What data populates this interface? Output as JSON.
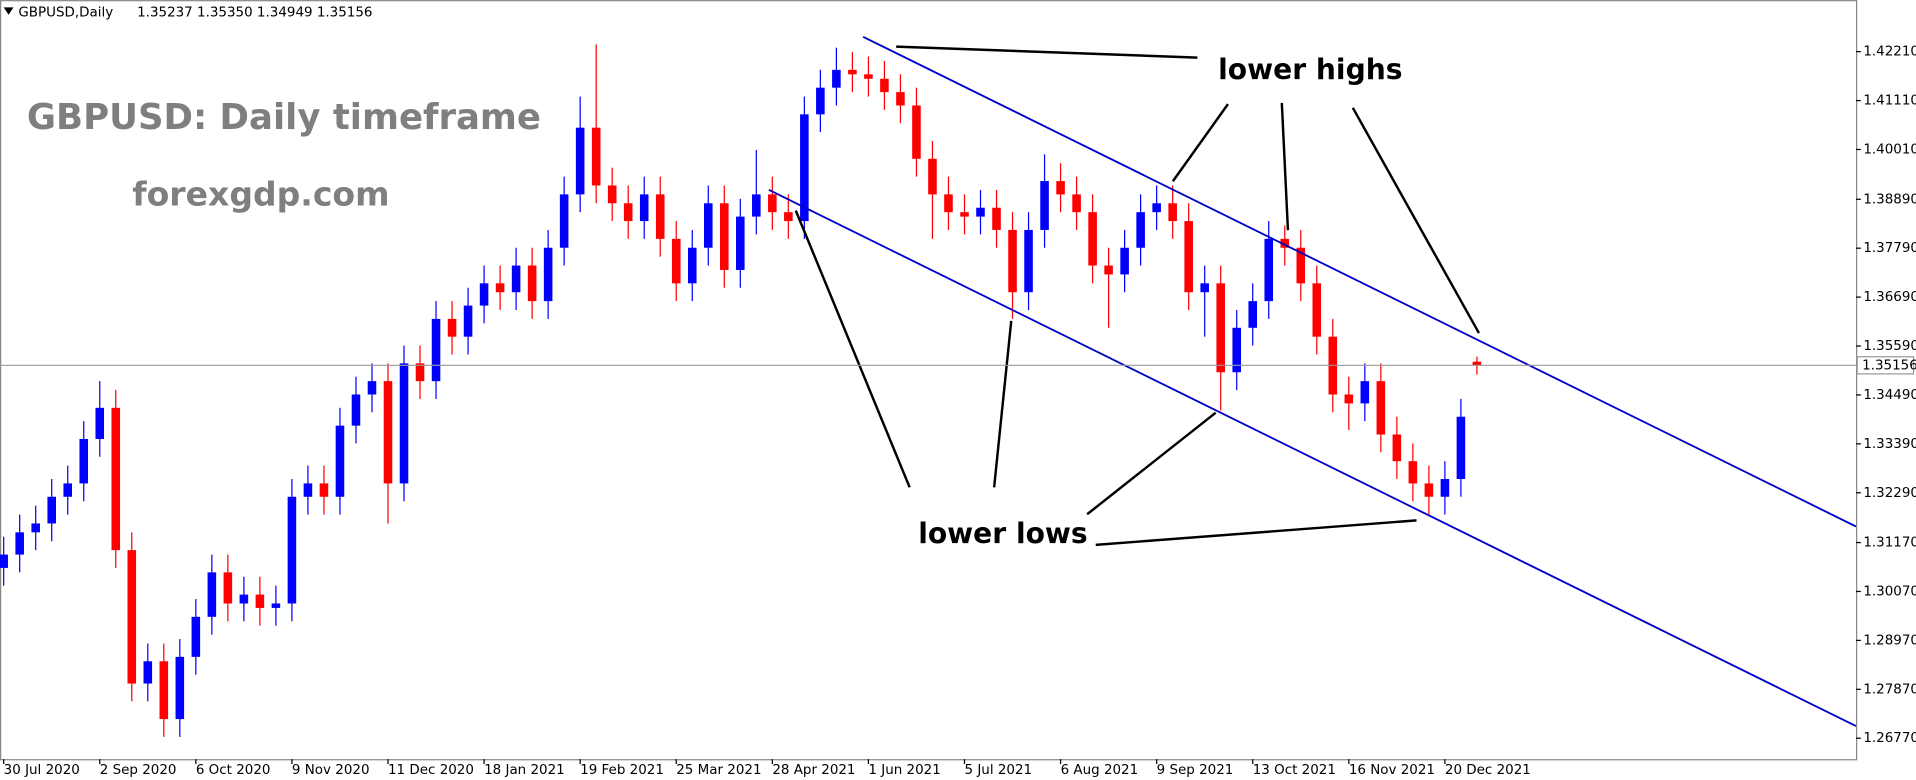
{
  "header": {
    "symbol": "GBPUSD,Daily",
    "quote": "1.35237 1.35350 1.34949 1.35156"
  },
  "chart_data": {
    "type": "candlestick",
    "title": "GBPUSD: Daily timeframe",
    "subtitle": "forexgdp.com",
    "annotations": [
      "lower highs",
      "lower lows"
    ],
    "categories": [
      "30 Jul 2020",
      null,
      null,
      null,
      null,
      null,
      "2 Sep 2020",
      null,
      null,
      null,
      null,
      null,
      "6 Oct 2020",
      null,
      null,
      null,
      null,
      null,
      "9 Nov 2020",
      null,
      null,
      null,
      null,
      null,
      "11 Dec 2020",
      null,
      null,
      null,
      null,
      null,
      "18 Jan 2021",
      null,
      null,
      null,
      null,
      null,
      "19 Feb 2021",
      null,
      null,
      null,
      null,
      null,
      "25 Mar 2021",
      null,
      null,
      null,
      null,
      null,
      "28 Apr 2021",
      null,
      null,
      null,
      null,
      null,
      "1 Jun 2021",
      null,
      null,
      null,
      null,
      null,
      "5 Jul 2021",
      null,
      null,
      null,
      null,
      null,
      "6 Aug 2021",
      null,
      null,
      null,
      null,
      null,
      "9 Sep 2021",
      null,
      null,
      null,
      null,
      null,
      "13 Oct 2021",
      null,
      null,
      null,
      null,
      null,
      "16 Nov 2021",
      null,
      null,
      null,
      null,
      null,
      "20 Dec 2021",
      null,
      null
    ],
    "open": [
      1.306,
      1.309,
      1.314,
      1.316,
      1.322,
      1.325,
      1.335,
      1.342,
      1.31,
      1.28,
      1.285,
      1.272,
      1.286,
      1.295,
      1.305,
      1.298,
      1.3,
      1.297,
      1.298,
      1.322,
      1.325,
      1.322,
      1.338,
      1.345,
      1.348,
      1.325,
      1.352,
      1.348,
      1.362,
      1.358,
      1.365,
      1.37,
      1.368,
      1.374,
      1.366,
      1.378,
      1.39,
      1.405,
      1.392,
      1.388,
      1.384,
      1.39,
      1.38,
      1.37,
      1.378,
      1.388,
      1.373,
      1.385,
      1.39,
      1.386,
      1.384,
      1.408,
      1.414,
      1.418,
      1.417,
      1.416,
      1.413,
      1.41,
      1.398,
      1.39,
      1.386,
      1.385,
      1.387,
      1.382,
      1.368,
      1.382,
      1.393,
      1.39,
      1.386,
      1.374,
      1.372,
      1.378,
      1.386,
      1.388,
      1.384,
      1.368,
      1.37,
      1.35,
      1.36,
      1.366,
      1.38,
      1.378,
      1.37,
      1.358,
      1.345,
      1.343,
      1.348,
      1.336,
      1.33,
      1.325,
      1.322,
      1.326,
      1.35237
    ],
    "high": [
      1.313,
      1.318,
      1.32,
      1.326,
      1.329,
      1.339,
      1.348,
      1.346,
      1.314,
      1.289,
      1.289,
      1.29,
      1.299,
      1.309,
      1.309,
      1.304,
      1.304,
      1.302,
      1.326,
      1.329,
      1.329,
      1.342,
      1.349,
      1.352,
      1.352,
      1.356,
      1.356,
      1.366,
      1.366,
      1.369,
      1.374,
      1.374,
      1.378,
      1.378,
      1.382,
      1.394,
      1.412,
      1.4237,
      1.396,
      1.392,
      1.394,
      1.394,
      1.384,
      1.382,
      1.392,
      1.392,
      1.389,
      1.4,
      1.394,
      1.39,
      1.412,
      1.418,
      1.423,
      1.422,
      1.421,
      1.42,
      1.417,
      1.414,
      1.402,
      1.394,
      1.39,
      1.391,
      1.391,
      1.386,
      1.386,
      1.399,
      1.397,
      1.394,
      1.39,
      1.378,
      1.382,
      1.39,
      1.392,
      1.392,
      1.388,
      1.374,
      1.374,
      1.364,
      1.37,
      1.384,
      1.383,
      1.382,
      1.374,
      1.362,
      1.349,
      1.352,
      1.352,
      1.34,
      1.334,
      1.329,
      1.33,
      1.344,
      1.3535
    ],
    "low": [
      1.302,
      1.305,
      1.31,
      1.312,
      1.318,
      1.321,
      1.331,
      1.306,
      1.276,
      1.276,
      1.268,
      1.268,
      1.282,
      1.291,
      1.294,
      1.294,
      1.293,
      1.293,
      1.294,
      1.318,
      1.318,
      1.318,
      1.334,
      1.341,
      1.316,
      1.321,
      1.344,
      1.344,
      1.354,
      1.354,
      1.361,
      1.364,
      1.364,
      1.362,
      1.362,
      1.374,
      1.386,
      1.388,
      1.384,
      1.38,
      1.38,
      1.376,
      1.366,
      1.366,
      1.374,
      1.369,
      1.369,
      1.381,
      1.382,
      1.38,
      1.38,
      1.404,
      1.41,
      1.413,
      1.412,
      1.409,
      1.406,
      1.394,
      1.38,
      1.382,
      1.381,
      1.381,
      1.378,
      1.362,
      1.364,
      1.378,
      1.386,
      1.382,
      1.37,
      1.36,
      1.368,
      1.374,
      1.382,
      1.38,
      1.364,
      1.358,
      1.3414,
      1.346,
      1.356,
      1.362,
      1.374,
      1.366,
      1.354,
      1.341,
      1.337,
      1.339,
      1.332,
      1.326,
      1.321,
      1.318,
      1.318,
      1.322,
      1.34949
    ],
    "close": [
      1.309,
      1.314,
      1.316,
      1.322,
      1.325,
      1.335,
      1.342,
      1.31,
      1.28,
      1.285,
      1.272,
      1.286,
      1.295,
      1.305,
      1.298,
      1.3,
      1.297,
      1.298,
      1.322,
      1.325,
      1.322,
      1.338,
      1.345,
      1.348,
      1.325,
      1.352,
      1.348,
      1.362,
      1.358,
      1.365,
      1.37,
      1.368,
      1.374,
      1.366,
      1.378,
      1.39,
      1.405,
      1.392,
      1.388,
      1.384,
      1.39,
      1.38,
      1.37,
      1.378,
      1.388,
      1.373,
      1.385,
      1.39,
      1.386,
      1.384,
      1.408,
      1.414,
      1.418,
      1.417,
      1.416,
      1.413,
      1.41,
      1.398,
      1.39,
      1.386,
      1.385,
      1.387,
      1.382,
      1.368,
      1.382,
      1.393,
      1.39,
      1.386,
      1.374,
      1.372,
      1.378,
      1.386,
      1.388,
      1.384,
      1.368,
      1.37,
      1.35,
      1.36,
      1.366,
      1.38,
      1.378,
      1.37,
      1.358,
      1.345,
      1.343,
      1.348,
      1.336,
      1.33,
      1.325,
      1.322,
      1.326,
      1.34,
      1.35156
    ],
    "up_color": "#0000ff",
    "down_color": "#ff0000",
    "ylim": [
      1.263,
      1.4337
    ],
    "yticks": [
      {
        "value": 1.4221,
        "label": "1.42210"
      },
      {
        "value": 1.4111,
        "label": "1.41110"
      },
      {
        "value": 1.4001,
        "label": "1.40010"
      },
      {
        "value": 1.3889,
        "label": "1.38890"
      },
      {
        "value": 1.3779,
        "label": "1.37790"
      },
      {
        "value": 1.3669,
        "label": "1.36690"
      },
      {
        "value": 1.3559,
        "label": "1.35590"
      },
      {
        "value": 1.3449,
        "label": "1.34490"
      },
      {
        "value": 1.3339,
        "label": "1.33390"
      },
      {
        "value": 1.3229,
        "label": "1.32290"
      },
      {
        "value": 1.3117,
        "label": "1.31170"
      },
      {
        "value": 1.3007,
        "label": "1.30070"
      },
      {
        "value": 1.2897,
        "label": "1.28970"
      },
      {
        "value": 1.2787,
        "label": "1.27870"
      },
      {
        "value": 1.2677,
        "label": "1.26770"
      }
    ],
    "grid": false
  }
}
